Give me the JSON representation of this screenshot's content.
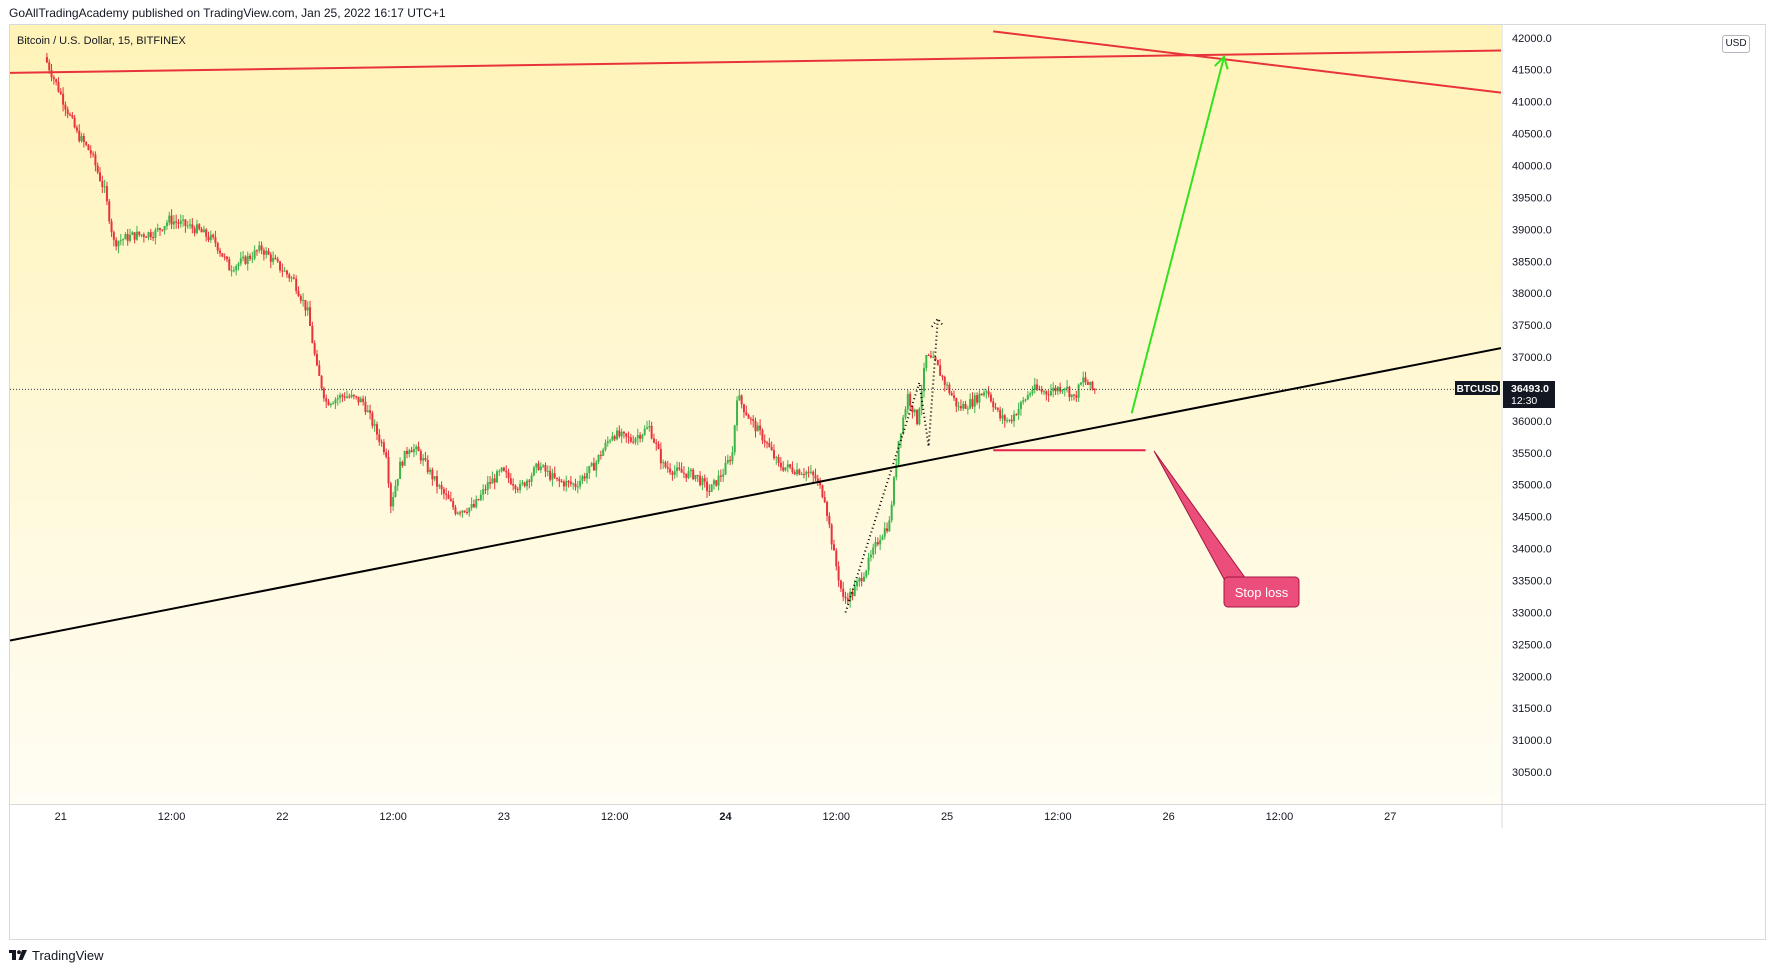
{
  "header": {
    "publisher_line": "GoAllTradingAcademy published on TradingView.com, Jan 25, 2022 16:17 UTC+1",
    "symbol_title": "Bitcoin / U.S. Dollar, 15, BITFINEX",
    "currency": "USD"
  },
  "footer": {
    "brand": "TradingView"
  },
  "price_label": {
    "symbol": "BTCUSD",
    "price": "36493.0",
    "countdown": "12:30"
  },
  "annotation": {
    "stop_loss_label": "Stop loss"
  },
  "colors": {
    "up": "#26a69a",
    "up_candle": "#3bb54a",
    "down": "#e8333c",
    "trend_black": "#000000",
    "trend_red": "#e8333c",
    "projection_green": "#33e21f",
    "stop_loss_line": "#e8204d",
    "callout_fill": "#ec4e7c",
    "bg_top": "#fff3b8",
    "bg_bottom": "#fffdf4"
  },
  "chart_data": {
    "type": "candlestick",
    "title": "Bitcoin / U.S. Dollar, 15, BITFINEX",
    "ylim": [
      30000,
      42200
    ],
    "y_ticks": [
      30500,
      31000,
      31500,
      32000,
      32500,
      33000,
      33500,
      34000,
      34500,
      35000,
      35500,
      36000,
      36500,
      37000,
      37500,
      38000,
      38500,
      39000,
      39500,
      40000,
      40500,
      41000,
      41500,
      42000
    ],
    "y_tick_labels": [
      "30500.0",
      "31000.0",
      "31500.0",
      "32000.0",
      "32500.0",
      "33000.0",
      "33500.0",
      "34000.0",
      "34500.0",
      "35000.0",
      "35500.0",
      "36000.0",
      "36500.0",
      "37000.0",
      "37500.0",
      "38000.0",
      "38500.0",
      "39000.0",
      "39500.0",
      "40000.0",
      "40500.0",
      "41000.0",
      "41500.0",
      "42000.0"
    ],
    "x_time_range": [
      "2022-01-20T18:30",
      "2022-01-27T12:00"
    ],
    "x_ticks": [
      {
        "t": "2022-01-21T00:00",
        "label": "21",
        "bold": false
      },
      {
        "t": "2022-01-21T12:00",
        "label": "12:00",
        "bold": false
      },
      {
        "t": "2022-01-22T00:00",
        "label": "22",
        "bold": false
      },
      {
        "t": "2022-01-22T12:00",
        "label": "12:00",
        "bold": false
      },
      {
        "t": "2022-01-23T00:00",
        "label": "23",
        "bold": false
      },
      {
        "t": "2022-01-23T12:00",
        "label": "12:00",
        "bold": false
      },
      {
        "t": "2022-01-24T00:00",
        "label": "24",
        "bold": true
      },
      {
        "t": "2022-01-24T12:00",
        "label": "12:00",
        "bold": false
      },
      {
        "t": "2022-01-25T00:00",
        "label": "25",
        "bold": false
      },
      {
        "t": "2022-01-25T12:00",
        "label": "12:00",
        "bold": false
      },
      {
        "t": "2022-01-26T00:00",
        "label": "26",
        "bold": false
      },
      {
        "t": "2022-01-26T12:00",
        "label": "12:00",
        "bold": false
      },
      {
        "t": "2022-01-27T00:00",
        "label": "27",
        "bold": false
      }
    ],
    "last_price": 36493.0,
    "close_path": [
      [
        "2022-01-20T22:30",
        41700
      ],
      [
        "2022-01-21T00:00",
        41200
      ],
      [
        "2022-01-21T02:00",
        40500
      ],
      [
        "2022-01-21T03:30",
        40200
      ],
      [
        "2022-01-21T05:00",
        39600
      ],
      [
        "2022-01-21T06:00",
        38800
      ],
      [
        "2022-01-21T08:00",
        38900
      ],
      [
        "2022-01-21T10:30",
        38950
      ],
      [
        "2022-01-21T12:00",
        39150
      ],
      [
        "2022-01-21T15:00",
        39000
      ],
      [
        "2022-01-21T17:00",
        38800
      ],
      [
        "2022-01-21T18:30",
        38400
      ],
      [
        "2022-01-21T20:00",
        38500
      ],
      [
        "2022-01-21T22:00",
        38700
      ],
      [
        "2022-01-22T00:00",
        38400
      ],
      [
        "2022-01-22T01:30",
        38200
      ],
      [
        "2022-01-22T03:00",
        37700
      ],
      [
        "2022-01-22T04:00",
        36800
      ],
      [
        "2022-01-22T05:00",
        36300
      ],
      [
        "2022-01-22T07:00",
        36400
      ],
      [
        "2022-01-22T09:00",
        36300
      ],
      [
        "2022-01-22T10:30",
        35800
      ],
      [
        "2022-01-22T11:30",
        35500
      ],
      [
        "2022-01-22T12:00",
        34700
      ],
      [
        "2022-01-22T13:00",
        35300
      ],
      [
        "2022-01-22T14:00",
        35600
      ],
      [
        "2022-01-22T15:00",
        35500
      ],
      [
        "2022-01-22T17:00",
        35000
      ],
      [
        "2022-01-22T19:00",
        34600
      ],
      [
        "2022-01-22T21:00",
        34650
      ],
      [
        "2022-01-22T22:30",
        35000
      ],
      [
        "2022-01-23T00:00",
        35200
      ],
      [
        "2022-01-23T02:00",
        34950
      ],
      [
        "2022-01-23T04:00",
        35300
      ],
      [
        "2022-01-23T06:00",
        35050
      ],
      [
        "2022-01-23T08:00",
        35000
      ],
      [
        "2022-01-23T10:00",
        35300
      ],
      [
        "2022-01-23T12:00",
        35800
      ],
      [
        "2022-01-23T14:00",
        35700
      ],
      [
        "2022-01-23T16:00",
        35900
      ],
      [
        "2022-01-23T17:30",
        35300
      ],
      [
        "2022-01-23T19:00",
        35200
      ],
      [
        "2022-01-23T21:00",
        35150
      ],
      [
        "2022-01-23T22:30",
        34900
      ],
      [
        "2022-01-24T00:00",
        35200
      ],
      [
        "2022-01-24T01:00",
        35500
      ],
      [
        "2022-01-24T01:30",
        36400
      ],
      [
        "2022-01-24T03:00",
        36000
      ],
      [
        "2022-01-24T04:30",
        35700
      ],
      [
        "2022-01-24T06:00",
        35300
      ],
      [
        "2022-01-24T07:30",
        35250
      ],
      [
        "2022-01-24T09:00",
        35200
      ],
      [
        "2022-01-24T10:00",
        35100
      ],
      [
        "2022-01-24T11:00",
        34800
      ],
      [
        "2022-01-24T12:00",
        33900
      ],
      [
        "2022-01-24T13:00",
        33200
      ],
      [
        "2022-01-24T14:00",
        33300
      ],
      [
        "2022-01-24T15:30",
        33700
      ],
      [
        "2022-01-24T17:00",
        34200
      ],
      [
        "2022-01-24T18:00",
        34400
      ],
      [
        "2022-01-24T19:00",
        35700
      ],
      [
        "2022-01-24T20:00",
        36400
      ],
      [
        "2022-01-24T21:00",
        36000
      ],
      [
        "2022-01-24T22:00",
        37000
      ],
      [
        "2022-01-24T23:00",
        36900
      ],
      [
        "2022-01-25T00:00",
        36600
      ],
      [
        "2022-01-25T01:30",
        36200
      ],
      [
        "2022-01-25T03:00",
        36300
      ],
      [
        "2022-01-25T04:30",
        36500
      ],
      [
        "2022-01-25T06:00",
        36050
      ],
      [
        "2022-01-25T07:00",
        36000
      ],
      [
        "2022-01-25T08:00",
        36200
      ],
      [
        "2022-01-25T09:30",
        36500
      ],
      [
        "2022-01-25T11:00",
        36450
      ],
      [
        "2022-01-25T13:00",
        36550
      ],
      [
        "2022-01-25T14:00",
        36350
      ],
      [
        "2022-01-25T15:00",
        36650
      ],
      [
        "2022-01-25T16:00",
        36493
      ]
    ],
    "drawings": {
      "black_support_trendline": {
        "from": [
          "2022-01-20T18:30",
          32560
        ],
        "to": [
          "2022-01-27T12:00",
          37140
        ]
      },
      "red_horizontal_resistance": {
        "from": [
          "2022-01-20T18:30",
          41450
        ],
        "to": [
          "2022-01-27T12:00",
          41800
        ]
      },
      "red_descending_trendline": {
        "from": [
          "2022-01-25T05:00",
          42100
        ],
        "to": [
          "2022-01-27T12:00",
          41140
        ]
      },
      "green_projection_arrow": {
        "from": [
          "2022-01-25T20:00",
          36120
        ],
        "to": [
          "2022-01-26T06:00",
          41700
        ]
      },
      "stop_loss_level": {
        "from": [
          "2022-01-25T05:00",
          35540
        ],
        "to": [
          "2022-01-25T21:30",
          35540
        ]
      },
      "dotted_rebound_path": [
        [
          "2022-01-24T13:00",
          33000
        ],
        [
          "2022-01-24T21:00",
          36600
        ],
        [
          "2022-01-24T22:00",
          35600
        ],
        [
          "2022-01-24T23:00",
          37600
        ]
      ]
    }
  }
}
